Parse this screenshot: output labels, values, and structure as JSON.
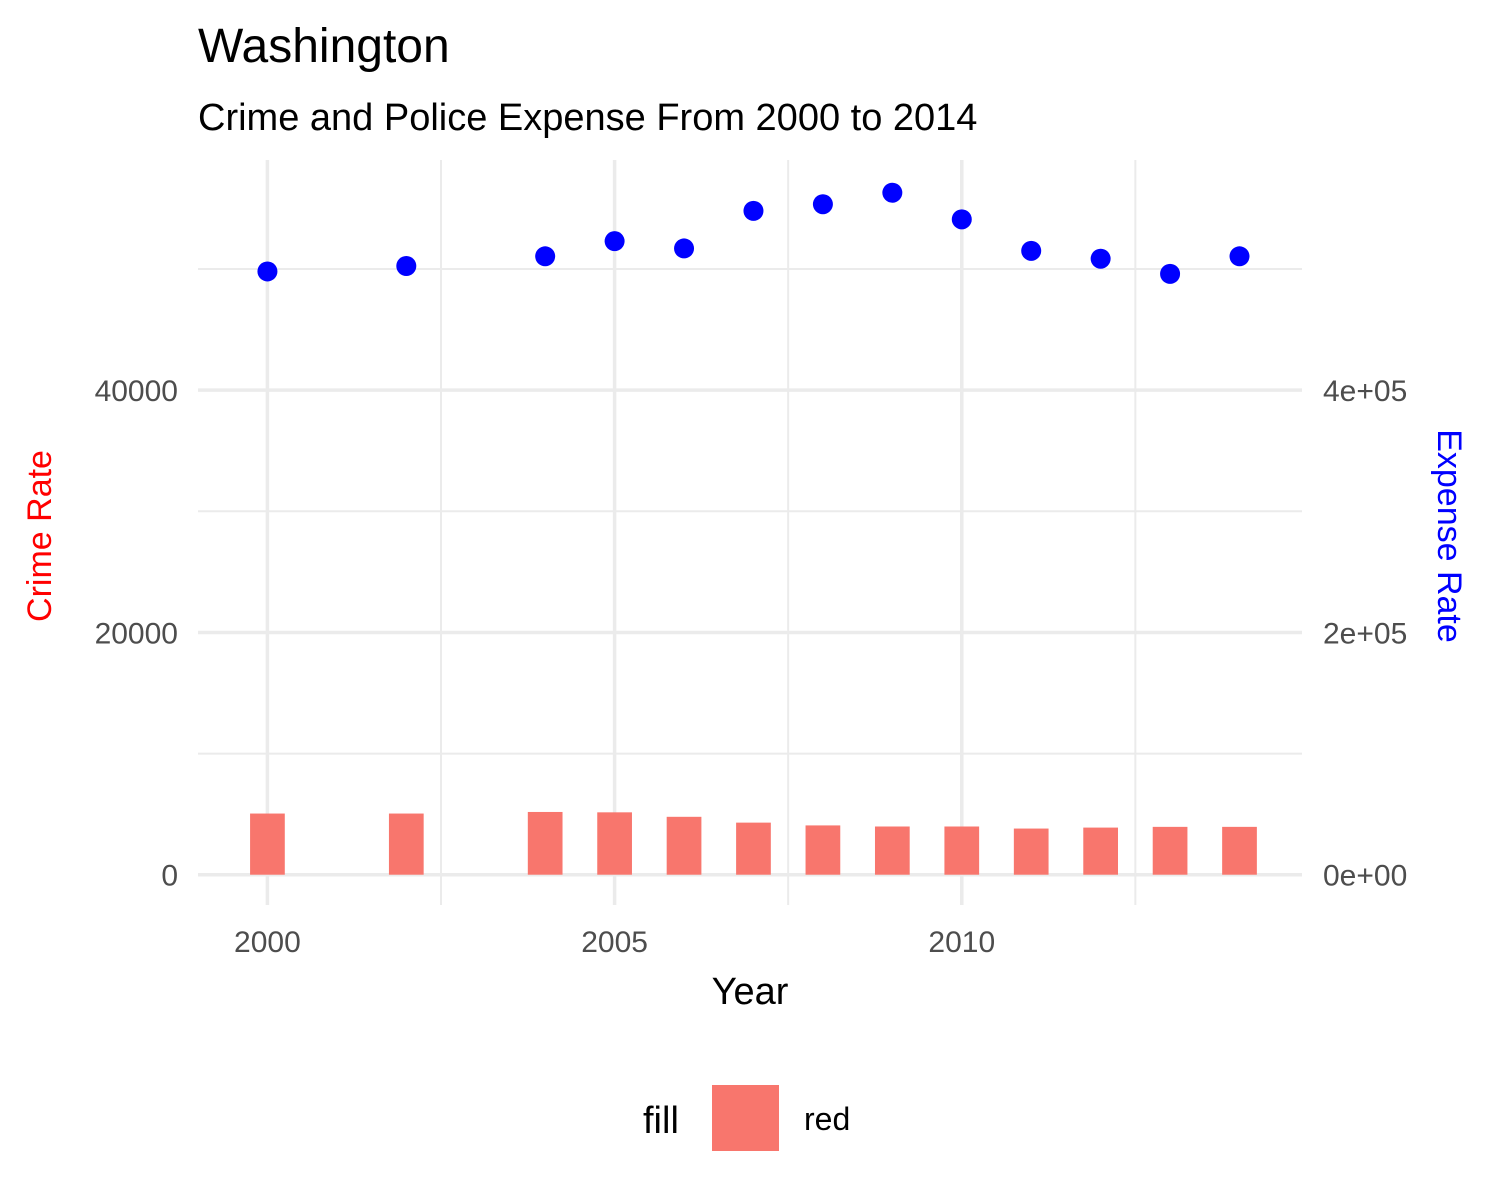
{
  "chart_data": {
    "type": "bar+scatter",
    "title": "Washington",
    "subtitle": "Crime and Police Expense From 2000 to 2014",
    "xlabel": "Year",
    "ylabel_left": "Crime Rate",
    "ylabel_right": "Expense Rate",
    "colors": {
      "bar": "#F8766D",
      "point": "#0000FF",
      "left_axis_title": "#FF0000",
      "right_axis_title": "#0000FF",
      "grid": "#EBEBEB"
    },
    "x_ticks": [
      2000,
      2005,
      2010
    ],
    "x_tick_labels": [
      "2000",
      "2005",
      "2010"
    ],
    "xlim": [
      1999,
      2014.9
    ],
    "y_left_ticks": [
      0,
      20000,
      40000
    ],
    "y_left_tick_labels": [
      "0",
      "20000",
      "40000"
    ],
    "y_right_ticks": [
      0,
      200000,
      400000
    ],
    "y_right_tick_labels": [
      "0e+00",
      "2e+05",
      "4e+05"
    ],
    "ylim_left": [
      -2500,
      59000
    ],
    "right_scale_factor": 10,
    "series": [
      {
        "name": "Crime Rate",
        "type": "bar",
        "axis": "left",
        "x": [
          2000,
          2002,
          2004,
          2005,
          2006,
          2007,
          2008,
          2009,
          2010,
          2011,
          2012,
          2013,
          2014
        ],
        "values": [
          5050,
          5050,
          5180,
          5150,
          4780,
          4300,
          4070,
          3980,
          3980,
          3810,
          3890,
          3950,
          3950
        ]
      },
      {
        "name": "Expense Rate",
        "type": "scatter",
        "axis": "right",
        "x": [
          2000,
          2002,
          2004,
          2005,
          2006,
          2007,
          2008,
          2009,
          2010,
          2011,
          2012,
          2013,
          2014
        ],
        "values": [
          498000,
          502500,
          510500,
          523000,
          517000,
          548000,
          553500,
          563000,
          541000,
          515000,
          508500,
          496000,
          510500
        ]
      }
    ],
    "legend": {
      "title": "fill",
      "position": "bottom",
      "items": [
        {
          "label": "red",
          "color": "#F8766D"
        }
      ]
    }
  }
}
